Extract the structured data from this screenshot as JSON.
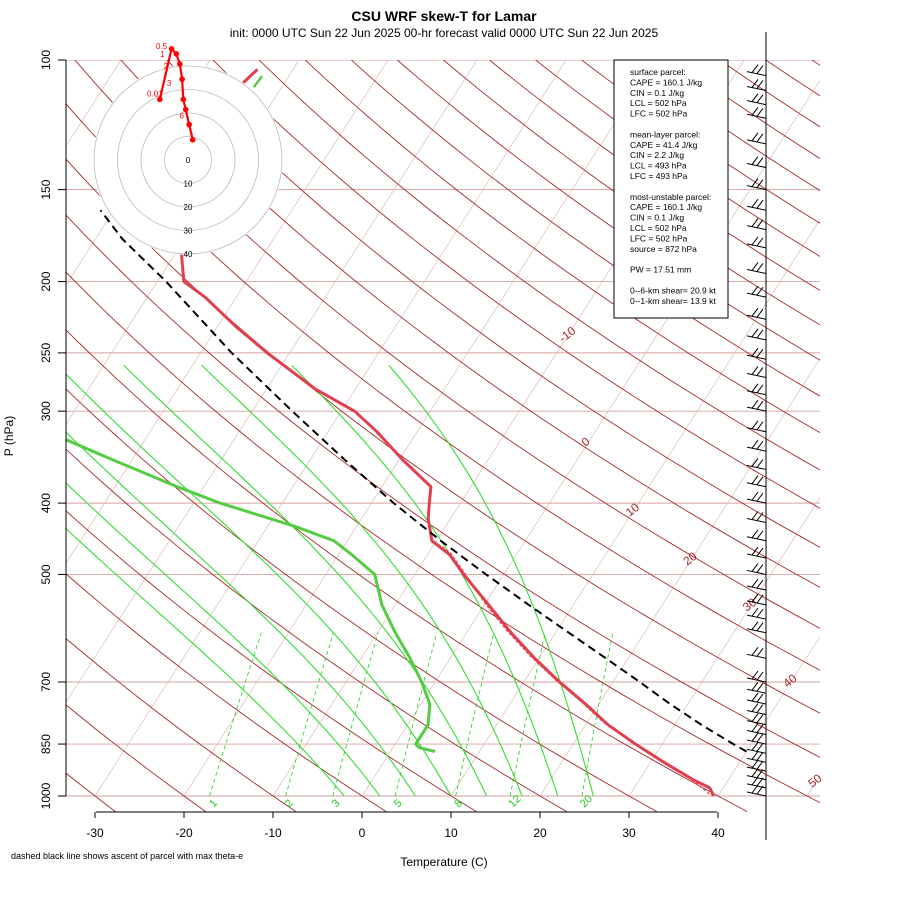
{
  "header": {
    "title": "CSU WRF skew-T for Lamar",
    "subtitle": "init: 0000 UTC Sun 22 Jun 2025    00-hr forecast valid 0000 UTC Sun 22 Jun 2025"
  },
  "footnote": "dashed black line shows ascent of parcel with max theta-e",
  "chart_data": {
    "type": "skew-t",
    "xlabel": "Temperature (C)",
    "ylabel": "P (hPa)",
    "pressure_ticks": [
      "100",
      "150",
      "200",
      "250",
      "300",
      "400",
      "500",
      "700",
      "850",
      "1000"
    ],
    "temperature_ticks": [
      "-30",
      "-20",
      "-10",
      "0",
      "10",
      "20",
      "30",
      "40"
    ],
    "xlim": [
      -33,
      51
    ],
    "plim": [
      1000,
      100
    ],
    "isotherm_labels": [
      "-10",
      "0",
      "10",
      "20",
      "30",
      "40",
      "50"
    ],
    "mixing_ratio_labels": [
      "1",
      "2",
      "3",
      "5",
      "8",
      "12",
      "20"
    ],
    "temperature_profile": [
      [
        1000,
        39.5
      ],
      [
        975,
        38.5
      ],
      [
        950,
        36.0
      ],
      [
        900,
        31.5
      ],
      [
        850,
        27.0
      ],
      [
        800,
        22.5
      ],
      [
        750,
        18.5
      ],
      [
        700,
        14.0
      ],
      [
        650,
        9.5
      ],
      [
        600,
        5.0
      ],
      [
        550,
        0.5
      ],
      [
        500,
        -4.5
      ],
      [
        470,
        -7.5
      ],
      [
        450,
        -10.5
      ],
      [
        420,
        -12.5
      ],
      [
        400,
        -13.5
      ],
      [
        380,
        -14.5
      ],
      [
        350,
        -19.5
      ],
      [
        320,
        -24.5
      ],
      [
        300,
        -28.5
      ],
      [
        280,
        -34.5
      ],
      [
        250,
        -42.5
      ],
      [
        230,
        -48.0
      ],
      [
        210,
        -53.5
      ],
      [
        200,
        -57.0
      ],
      [
        175,
        -60.5
      ],
      [
        150,
        -61.0
      ],
      [
        125,
        -64.0
      ],
      [
        110,
        -65.0
      ],
      [
        103,
        -64.0
      ]
    ],
    "dewpoint_profile": [
      [
        870,
        5.0
      ],
      [
        860,
        3.0
      ],
      [
        850,
        2.3
      ],
      [
        830,
        2.3
      ],
      [
        800,
        2.3
      ],
      [
        750,
        1.0
      ],
      [
        700,
        -1.5
      ],
      [
        650,
        -4.5
      ],
      [
        600,
        -8.0
      ],
      [
        550,
        -11.5
      ],
      [
        500,
        -14.5
      ],
      [
        470,
        -18.5
      ],
      [
        450,
        -21.5
      ],
      [
        430,
        -27.0
      ],
      [
        400,
        -37.0
      ],
      [
        380,
        -43.0
      ],
      [
        350,
        -52.0
      ],
      [
        320,
        -61.5
      ],
      [
        300,
        -76.0
      ],
      [
        280,
        -76.5
      ],
      [
        250,
        -83.0
      ],
      [
        200,
        -100.5
      ],
      [
        175,
        -111.0
      ],
      [
        150,
        -118.0
      ],
      [
        125,
        -126.0
      ],
      [
        110,
        -131.5
      ],
      [
        105,
        -130.0
      ]
    ],
    "virtual_temperature_profile": [
      [
        1000,
        39.5
      ],
      [
        950,
        36.0
      ],
      [
        900,
        31.5
      ],
      [
        850,
        27.0
      ],
      [
        800,
        22.5
      ],
      [
        750,
        18.5
      ],
      [
        700,
        14.0
      ],
      [
        650,
        9.5
      ],
      [
        600,
        5.0
      ],
      [
        550,
        0.5
      ],
      [
        500,
        -4.0
      ],
      [
        470,
        -7.0
      ],
      [
        450,
        -10.2
      ]
    ],
    "max_theta_e_parcel": [
      [
        870,
        40.0
      ],
      [
        850,
        38.0
      ],
      [
        800,
        33.0
      ],
      [
        750,
        28.0
      ],
      [
        700,
        23.0
      ],
      [
        650,
        17.5
      ],
      [
        600,
        11.5
      ],
      [
        550,
        5.0
      ],
      [
        500,
        -2.0
      ],
      [
        450,
        -9.5
      ],
      [
        400,
        -17.5
      ],
      [
        350,
        -26.0
      ],
      [
        300,
        -35.5
      ],
      [
        250,
        -46.5
      ],
      [
        200,
        -59.0
      ],
      [
        175,
        -67.0
      ],
      [
        160,
        -71.5
      ]
    ],
    "wind_pressures": [
      1000,
      975,
      950,
      925,
      900,
      875,
      850,
      825,
      800,
      775,
      750,
      725,
      700,
      650,
      600,
      575,
      550,
      525,
      500,
      475,
      450,
      425,
      400,
      380,
      360,
      340,
      320,
      300,
      285,
      270,
      255,
      240,
      225,
      210,
      195,
      180,
      170,
      160,
      150,
      140,
      130,
      120,
      115,
      110,
      105
    ],
    "hodograph": {
      "ring_labels": [
        "0",
        "10",
        "20",
        "30",
        "40"
      ],
      "point_labels": [
        "0.01",
        "0.5",
        "1",
        "2",
        "3",
        "6"
      ],
      "points": [
        [
          -12.0,
          6.0
        ],
        [
          -7.0,
          11.0
        ],
        [
          -5.0,
          10.5
        ],
        [
          -3.5,
          9.5
        ],
        [
          -2.5,
          8.0
        ],
        [
          -2.0,
          6.0
        ],
        [
          -1.0,
          5.0
        ],
        [
          0.5,
          3.5
        ],
        [
          2.0,
          2.0
        ]
      ],
      "green_segment": [
        [
          8.0,
          10.0
        ],
        [
          9.0,
          11.5
        ]
      ]
    },
    "info_box": {
      "lines": [
        "surface parcel:",
        "CAPE = 160.1 J/kg",
        "CIN = 0.1 J/kg",
        "LCL = 502 hPa",
        "LFC = 502 hPa",
        "",
        "mean-layer parcel:",
        "CAPE = 41.4 J/kg",
        "CIN = 2.2 J/kg",
        "LCL = 493 hPa",
        "LFC = 493 hPa",
        "",
        "most-unstable parcel:",
        "CAPE = 160.1 J/kg",
        "CIN = 0.1 J/kg",
        "LCL = 502 hPa",
        "LFC = 502 hPa",
        "source = 872 hPa",
        "",
        "PW =  17.51 mm",
        "",
        "0--6-km shear= 20.9 kt",
        "0--1-km shear= 13.9 kt"
      ]
    },
    "colors": {
      "isotherm": "#a52a2a",
      "dry_adiabat": "#a52a2a",
      "mixing_ratio": "#22cc22",
      "temperature": "#e0404e",
      "virtual_temperature": "#e0404e",
      "dewpoint": "#55cc44",
      "parcel": "#000000",
      "hodograph": "#ff0000"
    }
  }
}
